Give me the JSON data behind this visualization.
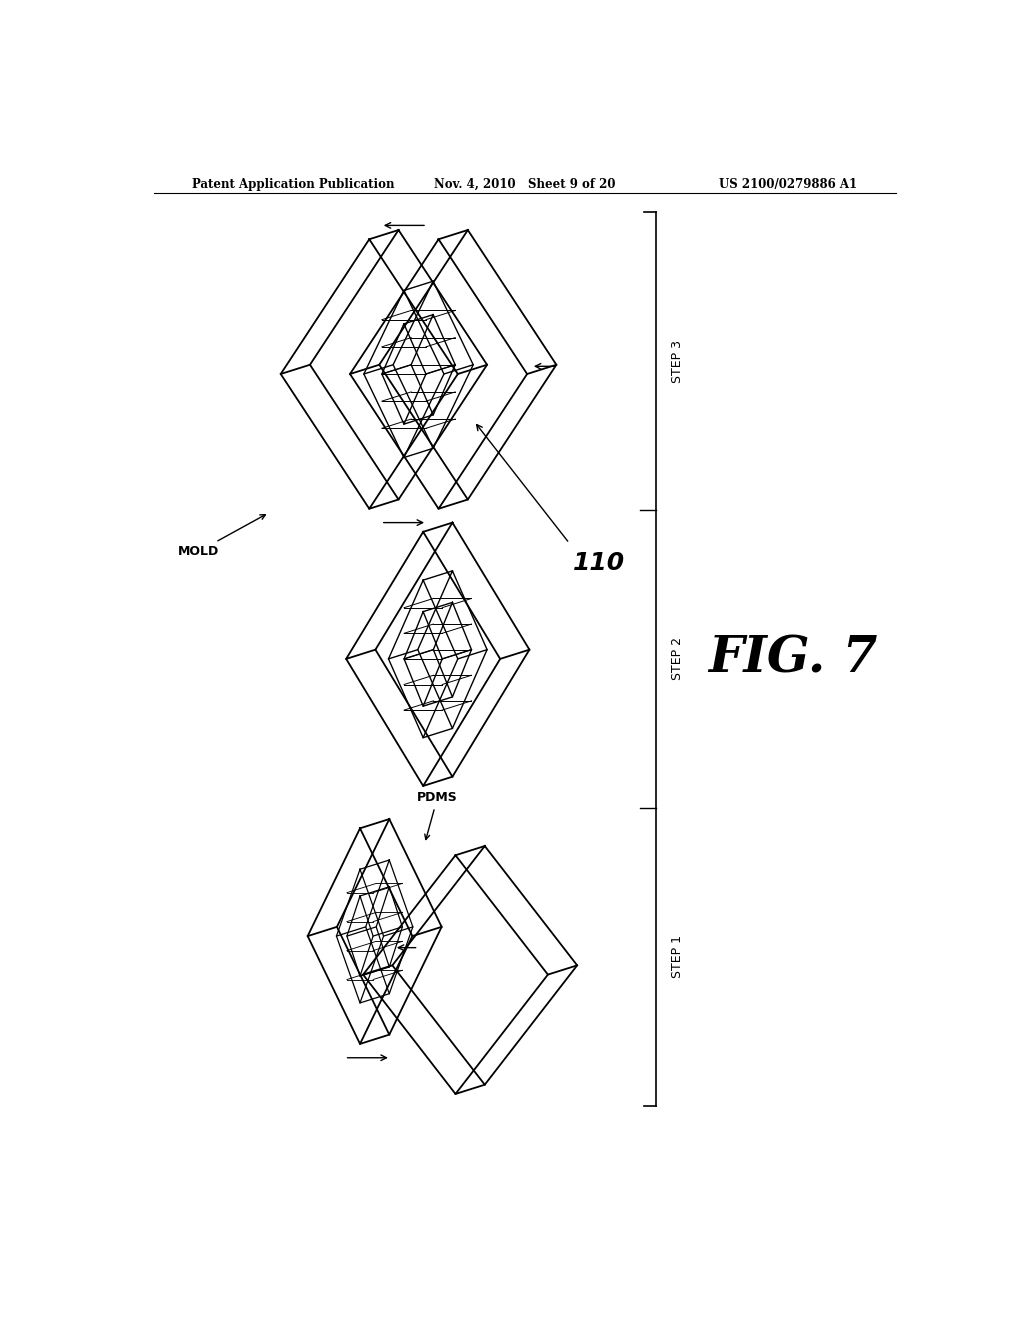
{
  "background_color": "#ffffff",
  "header_left": "Patent Application Publication",
  "header_center": "Nov. 4, 2010   Sheet 9 of 20",
  "header_right": "US 2100/0279886 A1",
  "fig_label": "FIG. 7",
  "step_labels": [
    "STEP 1",
    "STEP 2",
    "STEP 3"
  ],
  "line_color": "#000000"
}
